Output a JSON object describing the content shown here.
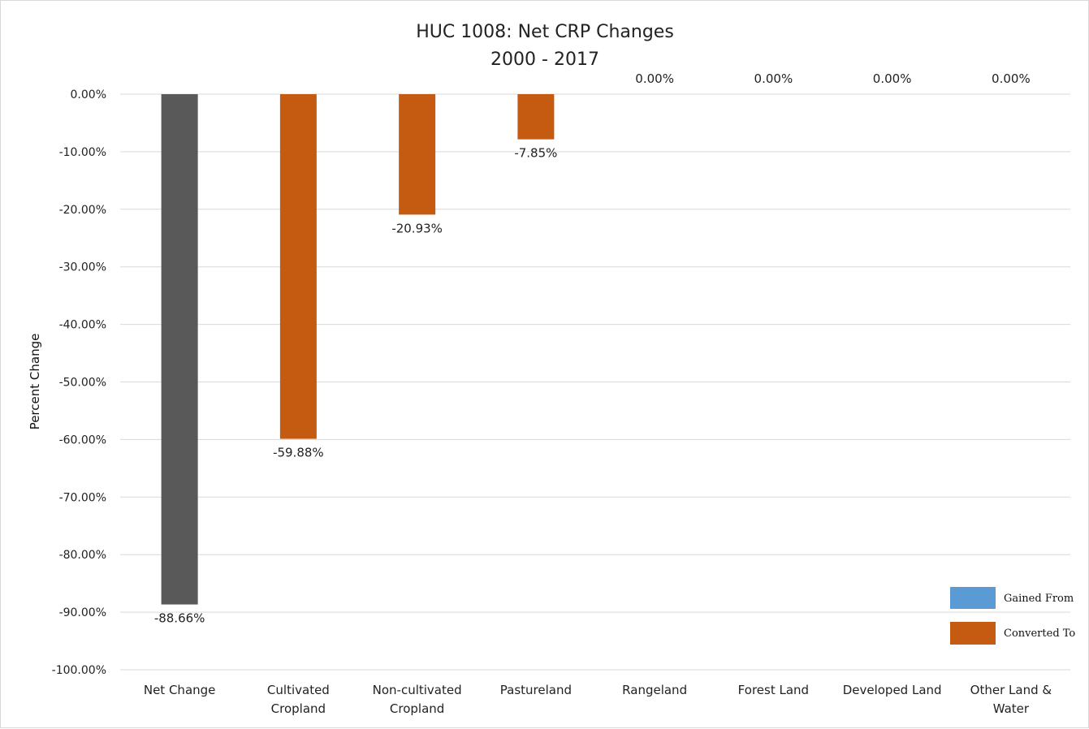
{
  "chart_data": {
    "type": "bar",
    "title": "HUC 1008: Net CRP Changes",
    "subtitle": "2000 - 2017",
    "ylabel": "Percent Change",
    "xlabel": "",
    "ylim": [
      -100,
      0
    ],
    "ytick_step": 10,
    "ytick_labels": [
      "0.00%",
      "-10.00%",
      "-20.00%",
      "-30.00%",
      "-40.00%",
      "-50.00%",
      "-60.00%",
      "-70.00%",
      "-80.00%",
      "-90.00%",
      "-100.00%"
    ],
    "grid": true,
    "categories": [
      [
        "Net Change"
      ],
      [
        "Cultivated",
        "Cropland"
      ],
      [
        "Non-cultivated",
        "Cropland"
      ],
      [
        "Pastureland"
      ],
      [
        "Rangeland"
      ],
      [
        "Forest Land"
      ],
      [
        "Developed Land"
      ],
      [
        "Other Land &",
        "Water"
      ]
    ],
    "values": [
      -88.66,
      -59.88,
      -20.93,
      -7.85,
      0.0,
      0.0,
      0.0,
      0.0
    ],
    "data_labels": [
      "-88.66%",
      "-59.88%",
      "-20.93%",
      "-7.85%",
      "0.00%",
      "0.00%",
      "0.00%",
      "0.00%"
    ],
    "bar_colors": [
      "#595959",
      "#c55a11",
      "#c55a11",
      "#c55a11",
      "#c55a11",
      "#c55a11",
      "#c55a11",
      "#c55a11"
    ],
    "legend": {
      "position": "bottom-right",
      "entries": [
        {
          "name": "Gained From",
          "color": "#5b9bd5"
        },
        {
          "name": "Converted To",
          "color": "#c55a11"
        }
      ]
    }
  }
}
